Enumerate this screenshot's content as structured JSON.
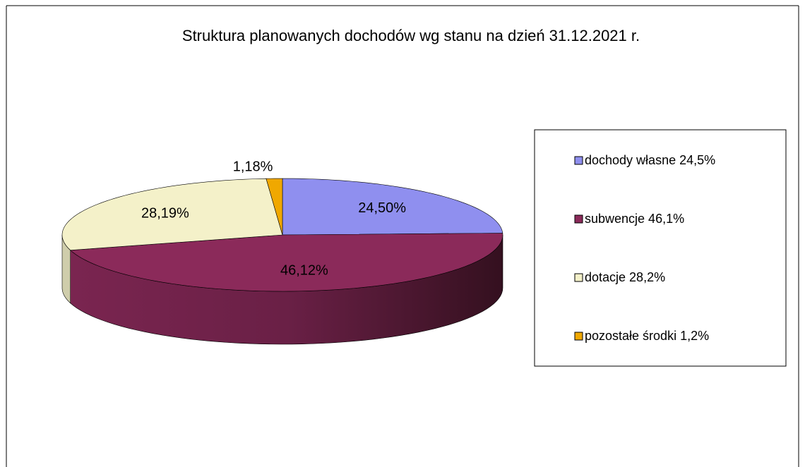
{
  "chart_data": {
    "type": "pie3d",
    "title": "Struktura planowanych  dochodów wg stanu na dzień 31.12.2021 r.",
    "categories": [
      "dochody własne 24,5%",
      "subwencje 46,1%",
      "dotacje 28,2%",
      "pozostałe środki 1,2%"
    ],
    "values": [
      24.5,
      46.12,
      28.19,
      1.18
    ],
    "value_labels": [
      "24,50%",
      "46,12%",
      "28,19%",
      "1,18%"
    ],
    "colors": [
      "#8f8fef",
      "#8b2a5a",
      "#f4f1c9",
      "#f0a800"
    ],
    "legend": "right"
  }
}
